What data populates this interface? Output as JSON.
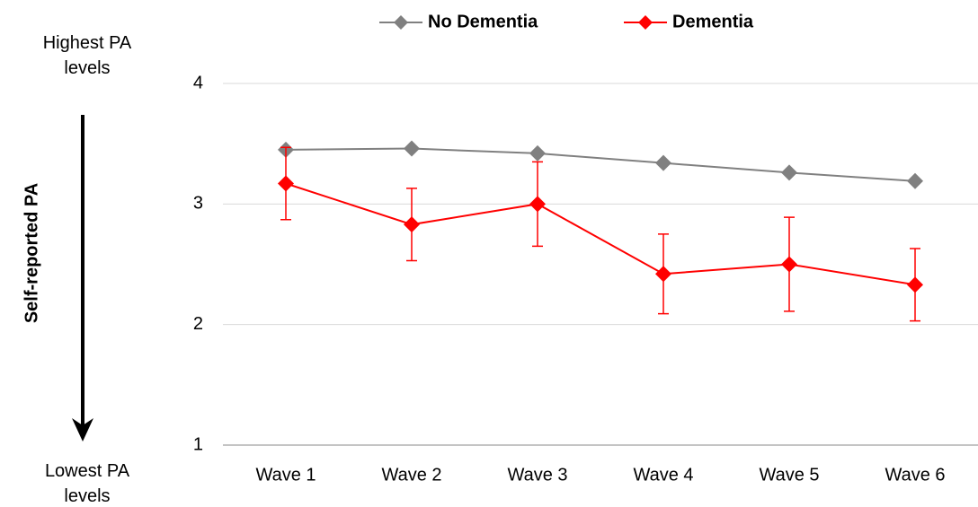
{
  "chart_data": {
    "type": "line",
    "ylabel": "Self-reported PA",
    "annotations": {
      "top": "Highest PA levels",
      "bottom": "Lowest PA levels"
    },
    "categories": [
      "Wave 1",
      "Wave 2",
      "Wave 3",
      "Wave 4",
      "Wave 5",
      "Wave 6"
    ],
    "series": [
      {
        "name": "No Dementia",
        "color": "#808080",
        "values": [
          3.45,
          3.46,
          3.42,
          3.34,
          3.26,
          3.19
        ]
      },
      {
        "name": "Dementia",
        "color": "#ff0000",
        "values": [
          3.17,
          2.83,
          3.0,
          2.42,
          2.5,
          2.33
        ],
        "errors": [
          0.3,
          0.3,
          0.35,
          0.33,
          0.39,
          0.3
        ]
      }
    ],
    "ylim": [
      1,
      4
    ],
    "yticks": [
      1,
      2,
      3,
      4
    ],
    "grid": true,
    "legend": "top"
  }
}
